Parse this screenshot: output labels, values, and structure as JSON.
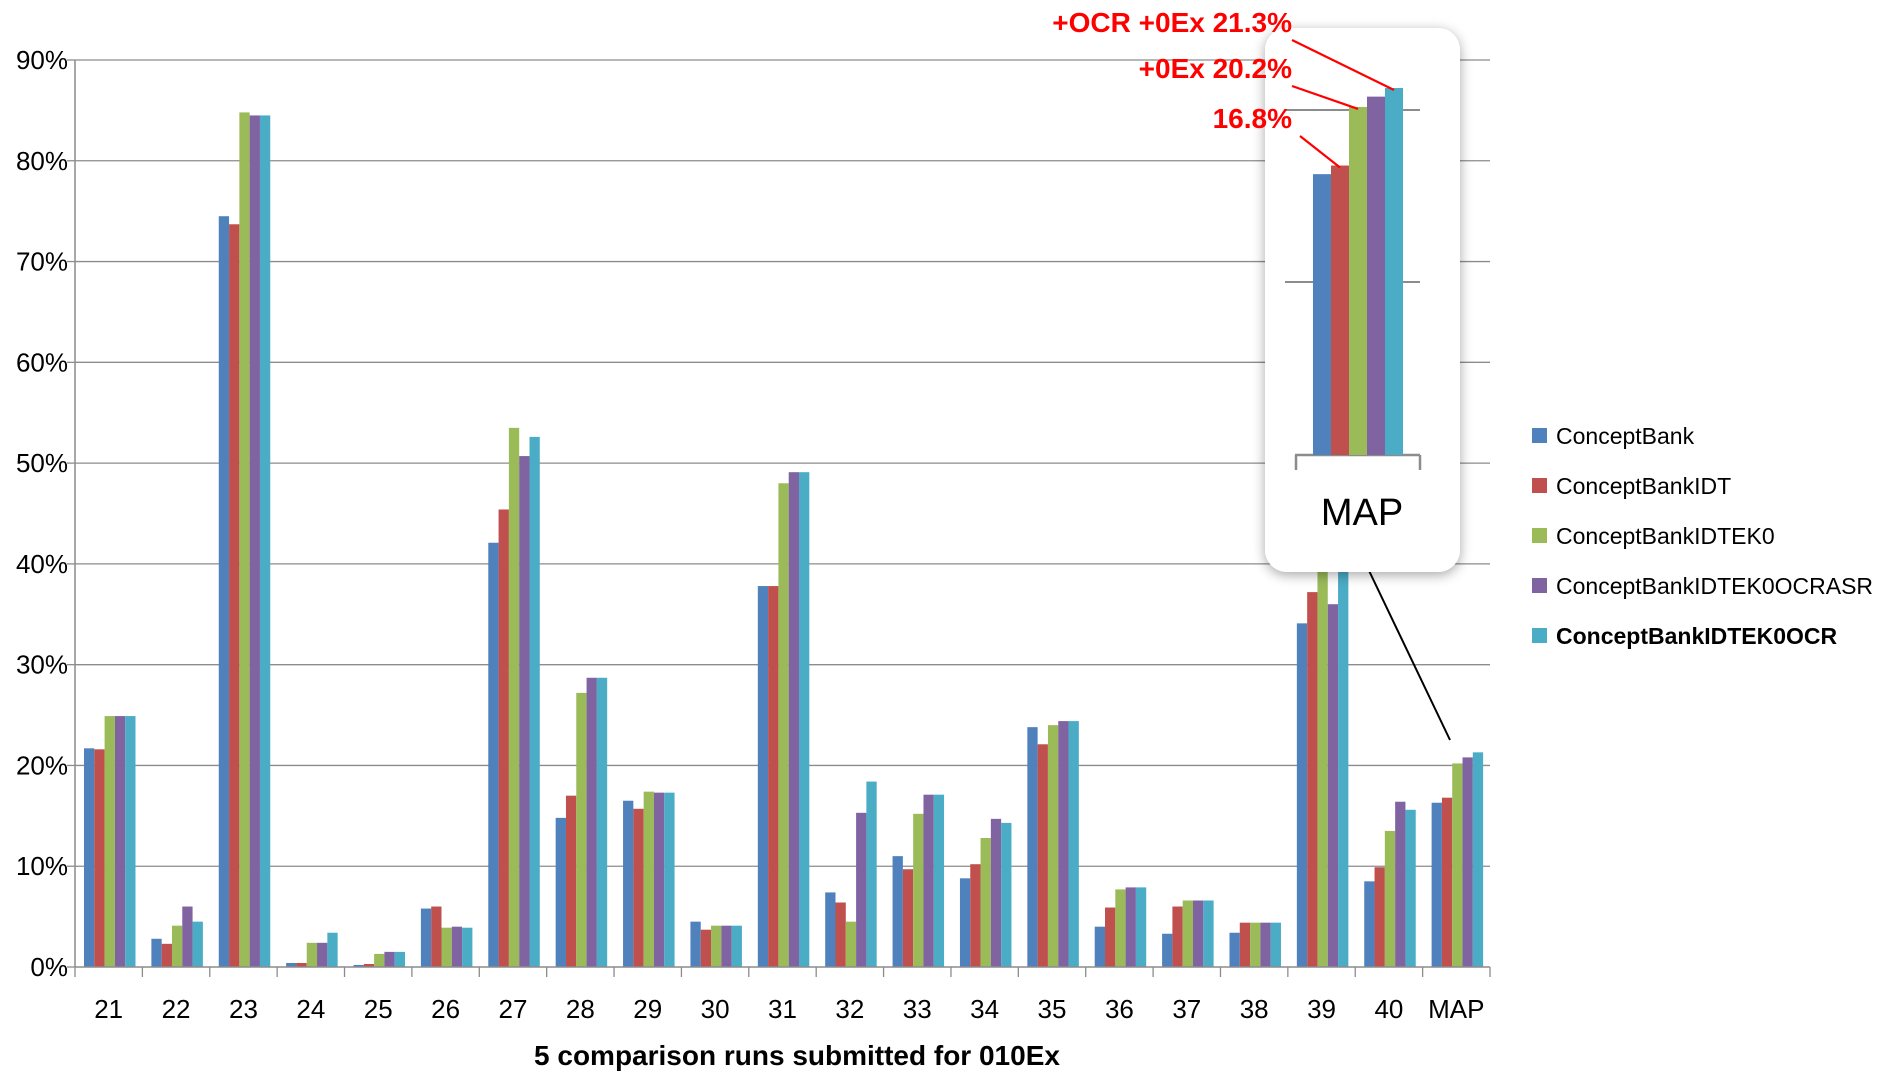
{
  "chart_data": {
    "type": "bar",
    "title": "",
    "xlabel": "5 comparison runs submitted for 010Ex",
    "ylabel": "",
    "ylim": [
      0,
      90
    ],
    "y_ticks": [
      "0%",
      "10%",
      "20%",
      "30%",
      "40%",
      "50%",
      "60%",
      "70%",
      "80%",
      "90%"
    ],
    "y_tick_values": [
      0,
      10,
      20,
      30,
      40,
      50,
      60,
      70,
      80,
      90
    ],
    "grid": true,
    "legend_position": "right",
    "categories": [
      "21",
      "22",
      "23",
      "24",
      "25",
      "26",
      "27",
      "28",
      "29",
      "30",
      "31",
      "32",
      "33",
      "34",
      "35",
      "36",
      "37",
      "38",
      "39",
      "40",
      "MAP"
    ],
    "series": [
      {
        "name": "ConceptBank",
        "color": "#4f81bd",
        "values": [
          21.7,
          2.8,
          74.5,
          0.4,
          0.2,
          5.8,
          42.1,
          14.8,
          16.5,
          4.5,
          37.8,
          7.4,
          11.0,
          8.8,
          23.8,
          4.0,
          3.3,
          3.4,
          34.1,
          8.5,
          16.3
        ]
      },
      {
        "name": "ConceptBankIDT",
        "color": "#c0504d",
        "values": [
          21.6,
          2.3,
          73.7,
          0.4,
          0.3,
          6.0,
          45.4,
          17.0,
          15.7,
          3.7,
          37.8,
          6.4,
          9.7,
          10.2,
          22.1,
          5.9,
          6.0,
          4.4,
          37.2,
          9.9,
          16.8
        ]
      },
      {
        "name": "ConceptBankIDTEK0",
        "color": "#9bbb59",
        "values": [
          24.9,
          4.1,
          84.8,
          2.4,
          1.3,
          3.9,
          53.5,
          27.2,
          17.4,
          4.1,
          48.0,
          4.5,
          15.2,
          12.8,
          24.0,
          7.7,
          6.6,
          4.4,
          40.5,
          13.5,
          20.2
        ]
      },
      {
        "name": "ConceptBankIDTEK0OCRASR",
        "color": "#8064a2",
        "values": [
          24.9,
          6.0,
          84.5,
          2.4,
          1.5,
          4.0,
          50.7,
          28.7,
          17.3,
          4.1,
          49.1,
          15.3,
          17.1,
          14.7,
          24.4,
          7.9,
          6.6,
          4.4,
          36.0,
          16.4,
          20.8
        ]
      },
      {
        "name": "ConceptBankIDTEK0OCR",
        "color": "#4bacc6",
        "bold": true,
        "values": [
          24.9,
          4.5,
          84.5,
          3.4,
          1.5,
          3.9,
          52.6,
          28.7,
          17.3,
          4.1,
          49.1,
          18.4,
          17.1,
          14.3,
          24.4,
          7.9,
          6.6,
          4.4,
          40.0,
          15.6,
          21.3
        ]
      }
    ],
    "inset": {
      "label": "MAP",
      "annotations": [
        {
          "text": "+OCR +0Ex 21.3%",
          "series": 4
        },
        {
          "text": "+0Ex 20.2%",
          "series": 2
        },
        {
          "text": "16.8%",
          "series": 1
        }
      ]
    }
  }
}
